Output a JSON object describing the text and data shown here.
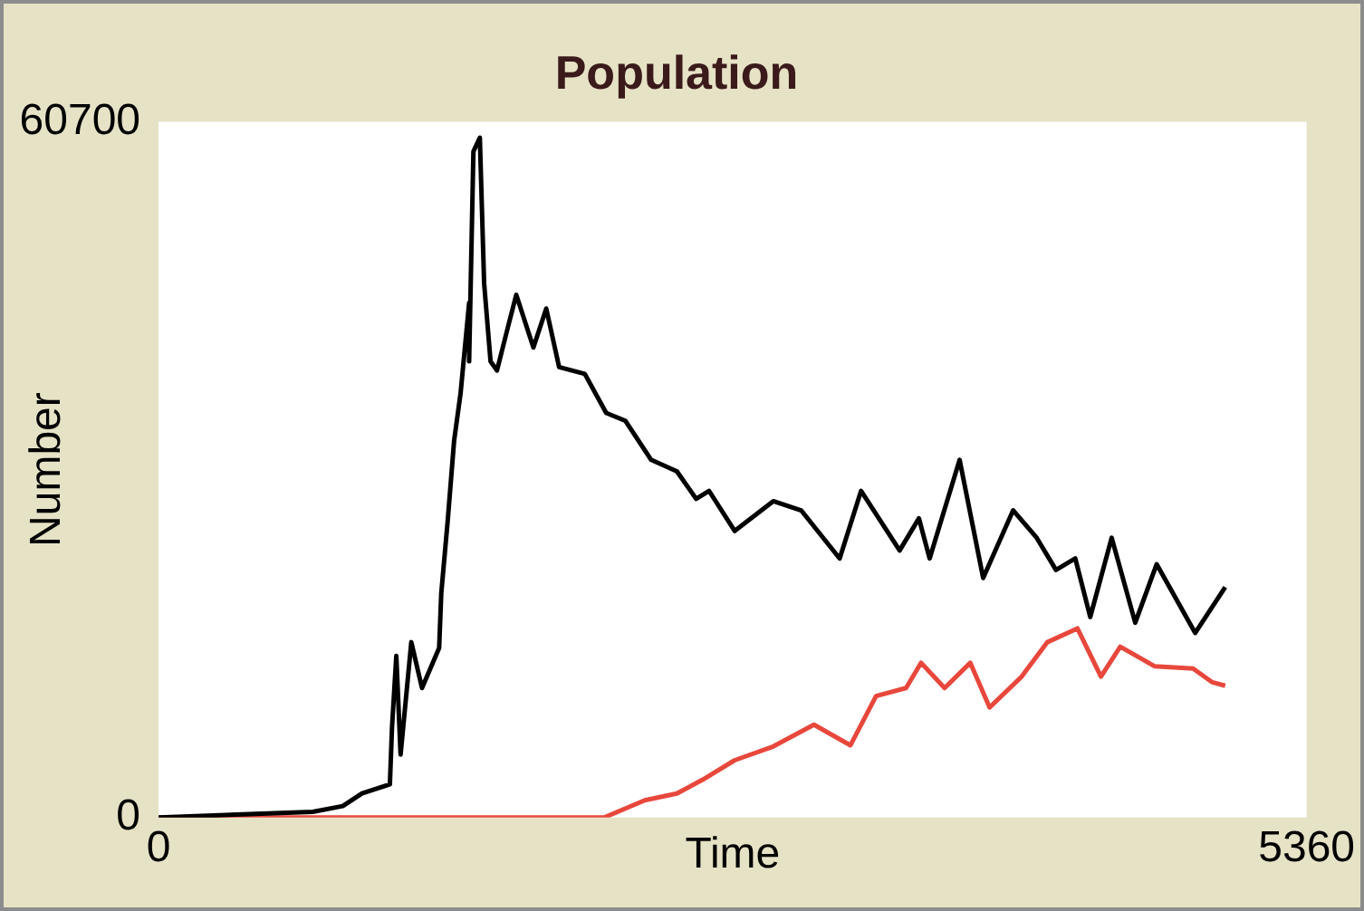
{
  "chart_data": {
    "type": "line",
    "title": "Population",
    "xlabel": "Time",
    "ylabel": "Number",
    "xlim": [
      0,
      5360
    ],
    "xticks": [
      0,
      5360
    ],
    "ylim": [
      0,
      60700
    ],
    "yticks": [
      0,
      60700
    ],
    "grid": false,
    "legend": false,
    "series": [
      {
        "color": "#000000",
        "x": [
          0,
          720,
          860,
          950,
          1080,
          1090,
          1110,
          1130,
          1180,
          1230,
          1310,
          1320,
          1350,
          1380,
          1410,
          1450,
          1450,
          1470,
          1500,
          1520,
          1550,
          1580,
          1630,
          1670,
          1750,
          1810,
          1870,
          1990,
          2090,
          2180,
          2300,
          2420,
          2510,
          2570,
          2690,
          2870,
          3000,
          3180,
          3280,
          3460,
          3550,
          3600,
          3740,
          3850,
          3990,
          4100,
          4190,
          4280,
          4350,
          4450,
          4560,
          4660,
          4840,
          4980
        ],
        "values": [
          0,
          500,
          1000,
          2100,
          2900,
          7900,
          14100,
          5500,
          15300,
          11300,
          14800,
          19600,
          25900,
          32900,
          37000,
          44900,
          39800,
          58100,
          59300,
          46600,
          39800,
          39000,
          42700,
          45600,
          41000,
          44400,
          39300,
          38700,
          35300,
          34600,
          31200,
          30200,
          27800,
          28500,
          25000,
          27600,
          26800,
          22600,
          28500,
          23300,
          26100,
          22600,
          31200,
          20900,
          26800,
          24400,
          21600,
          22600,
          17500,
          24400,
          17000,
          22100,
          16100,
          20100
        ]
      },
      {
        "color": "#e8473c",
        "x": [
          0,
          2080,
          2270,
          2420,
          2540,
          2690,
          2870,
          3060,
          3230,
          3350,
          3490,
          3560,
          3670,
          3790,
          3880,
          4030,
          4150,
          4290,
          4400,
          4490,
          4650,
          4830,
          4920,
          4980
        ],
        "values": [
          0,
          0,
          1500,
          2100,
          3300,
          5000,
          6200,
          8100,
          6300,
          10600,
          11300,
          13500,
          11300,
          13500,
          9600,
          12300,
          15300,
          16500,
          12300,
          14900,
          13200,
          13000,
          11800,
          11500
        ]
      }
    ]
  }
}
